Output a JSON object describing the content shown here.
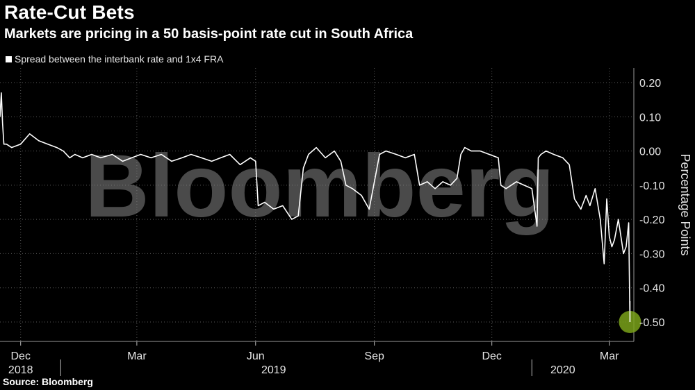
{
  "header": {
    "title": "Rate-Cut Bets",
    "subtitle": "Markets are pricing in a 50 basis-point rate cut in South Africa"
  },
  "legend": {
    "label": "Spread between the interbank rate and 1x4 FRA",
    "swatch_color": "#ffffff"
  },
  "watermark": "Bloomberg",
  "source": "Source: Bloomberg",
  "colors": {
    "background": "#000000",
    "line": "#ffffff",
    "grid": "#5a5a5a",
    "highlight": "#7aa21a"
  },
  "chart_data": {
    "type": "line",
    "title": "Rate-Cut Bets",
    "subtitle": "Markets are pricing in a 50 basis-point rate cut in South Africa",
    "ylabel": "Percentage Points",
    "xlabel": "",
    "ylim": [
      -0.55,
      0.25
    ],
    "yticks": [
      0.2,
      0.1,
      0.0,
      -0.1,
      -0.2,
      -0.3,
      -0.4,
      -0.5
    ],
    "ytick_labels": [
      "0.20",
      "0.10",
      "0.00",
      "-0.10",
      "-0.20",
      "-0.30",
      "-0.40",
      "-0.50"
    ],
    "y_axis_side": "right",
    "grid": "horizontal and vertical dotted",
    "x_range": [
      "2018-11-15",
      "2020-03-20"
    ],
    "month_ticks": [
      {
        "label": "Dec",
        "date": "2018-12-01"
      },
      {
        "label": "Mar",
        "date": "2019-03-01"
      },
      {
        "label": "Jun",
        "date": "2019-06-01"
      },
      {
        "label": "Sep",
        "date": "2019-09-01"
      },
      {
        "label": "Dec",
        "date": "2019-12-01"
      },
      {
        "label": "Mar",
        "date": "2020-03-01"
      }
    ],
    "year_labels": [
      {
        "label": "2018",
        "date": "2018-12-01"
      },
      {
        "label": "2019",
        "date": "2019-06-15"
      },
      {
        "label": "2020",
        "date": "2020-01-25"
      }
    ],
    "year_separators": [
      "2019-01-01",
      "2020-01-01"
    ],
    "highlight_point": {
      "x": "2020-03-17",
      "y": -0.5
    },
    "series": [
      {
        "name": "Spread between the interbank rate and 1x4 FRA",
        "x": [
          "2018-11-15",
          "2018-11-16",
          "2018-11-17",
          "2018-11-18",
          "2018-11-20",
          "2018-11-24",
          "2018-12-01",
          "2018-12-08",
          "2018-12-15",
          "2018-12-22",
          "2018-12-29",
          "2019-01-03",
          "2019-01-08",
          "2019-01-12",
          "2019-01-18",
          "2019-01-25",
          "2019-02-01",
          "2019-02-10",
          "2019-02-18",
          "2019-02-25",
          "2019-03-04",
          "2019-03-12",
          "2019-03-20",
          "2019-03-28",
          "2019-04-05",
          "2019-04-12",
          "2019-04-20",
          "2019-04-28",
          "2019-05-05",
          "2019-05-12",
          "2019-05-20",
          "2019-05-28",
          "2019-06-01",
          "2019-06-03",
          "2019-06-08",
          "2019-06-15",
          "2019-06-22",
          "2019-06-29",
          "2019-07-04",
          "2019-07-08",
          "2019-07-12",
          "2019-07-18",
          "2019-07-25",
          "2019-08-01",
          "2019-08-06",
          "2019-08-10",
          "2019-08-15",
          "2019-08-22",
          "2019-08-28",
          "2019-09-01",
          "2019-09-05",
          "2019-09-10",
          "2019-09-18",
          "2019-09-25",
          "2019-10-02",
          "2019-10-06",
          "2019-10-12",
          "2019-10-18",
          "2019-10-24",
          "2019-10-30",
          "2019-11-04",
          "2019-11-07",
          "2019-11-10",
          "2019-11-15",
          "2019-11-22",
          "2019-11-29",
          "2019-12-06",
          "2019-12-08",
          "2019-12-12",
          "2019-12-20",
          "2019-12-26",
          "2020-01-01",
          "2020-01-05",
          "2020-01-06",
          "2020-01-08",
          "2020-01-12",
          "2020-01-18",
          "2020-01-25",
          "2020-01-30",
          "2020-02-03",
          "2020-02-08",
          "2020-02-12",
          "2020-02-15",
          "2020-02-19",
          "2020-02-23",
          "2020-02-26",
          "2020-02-28",
          "2020-03-01",
          "2020-03-03",
          "2020-03-05",
          "2020-03-08",
          "2020-03-10",
          "2020-03-12",
          "2020-03-14",
          "2020-03-16",
          "2020-03-17"
        ],
        "y": [
          0.1,
          0.17,
          0.08,
          0.02,
          0.02,
          0.01,
          0.02,
          0.05,
          0.03,
          0.02,
          0.01,
          0.0,
          -0.02,
          -0.01,
          -0.02,
          -0.01,
          -0.02,
          -0.01,
          -0.03,
          -0.02,
          -0.01,
          -0.02,
          -0.01,
          -0.03,
          -0.02,
          -0.01,
          -0.02,
          -0.03,
          -0.02,
          -0.01,
          -0.04,
          -0.02,
          -0.03,
          -0.16,
          -0.15,
          -0.17,
          -0.16,
          -0.2,
          -0.19,
          -0.05,
          -0.01,
          0.01,
          -0.02,
          0.0,
          -0.03,
          -0.1,
          -0.11,
          -0.13,
          -0.17,
          -0.09,
          -0.01,
          0.0,
          -0.01,
          -0.02,
          -0.01,
          -0.1,
          -0.09,
          -0.11,
          -0.09,
          -0.1,
          -0.08,
          -0.01,
          0.01,
          0.0,
          0.0,
          -0.01,
          -0.02,
          -0.1,
          -0.11,
          -0.09,
          -0.1,
          -0.11,
          -0.22,
          -0.02,
          -0.01,
          0.0,
          -0.01,
          -0.02,
          -0.04,
          -0.14,
          -0.17,
          -0.13,
          -0.16,
          -0.11,
          -0.2,
          -0.33,
          -0.14,
          -0.25,
          -0.28,
          -0.26,
          -0.2,
          -0.25,
          -0.3,
          -0.28,
          -0.21,
          -0.5
        ]
      }
    ]
  }
}
